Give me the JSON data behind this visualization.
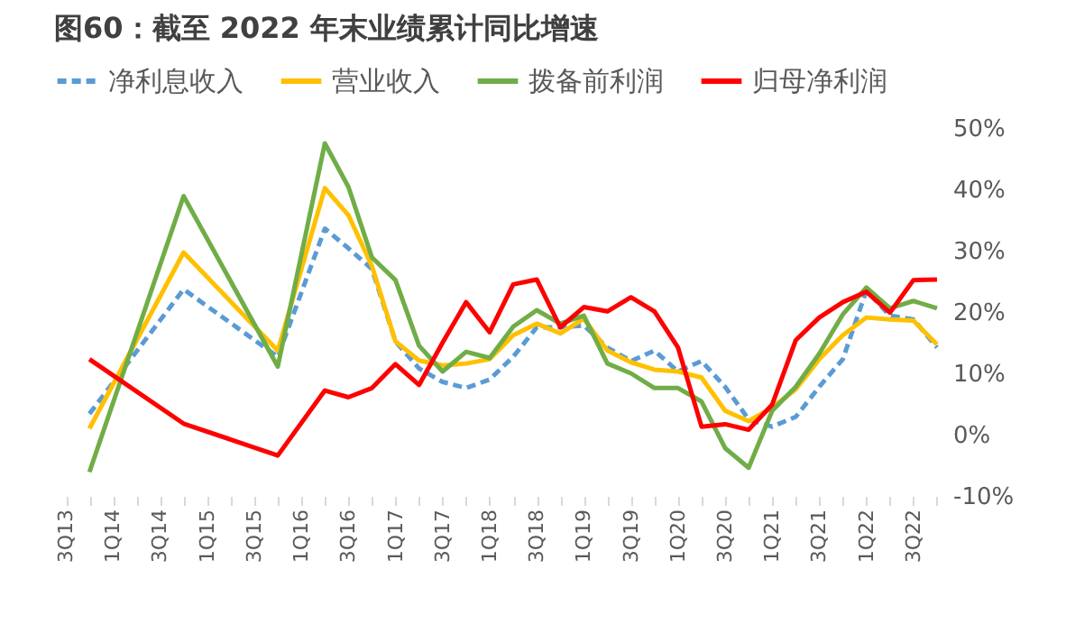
{
  "chart_data": {
    "type": "line",
    "title": "图60：截至 2022 年末业绩累计同比增速",
    "categories": [
      "3Q13",
      null,
      "1Q14",
      null,
      "3Q14",
      null,
      "1Q15",
      null,
      "3Q15",
      null,
      "1Q16",
      null,
      "3Q16",
      null,
      "1Q17",
      null,
      "3Q17",
      null,
      "1Q18",
      null,
      "3Q18",
      null,
      "1Q19",
      null,
      "3Q19",
      null,
      "1Q20",
      null,
      "3Q20",
      null,
      "1Q21",
      null,
      "3Q21",
      null,
      "1Q22",
      null,
      "3Q22",
      null
    ],
    "series": [
      {
        "name": "净利息收入",
        "color": "#5b9bd5",
        "line_style": "dashed",
        "values": [
          null,
          3.4,
          null,
          null,
          null,
          23.7,
          null,
          null,
          null,
          12.7,
          null,
          33.6,
          30.4,
          27.0,
          15.2,
          10.8,
          8.6,
          7.6,
          9.0,
          12.7,
          17.5,
          17.5,
          17.8,
          14.2,
          12.0,
          13.7,
          10.3,
          12.0,
          7.8,
          2.5,
          1.3,
          2.9,
          7.8,
          12.3,
          23.5,
          19.4,
          18.8,
          14.2
        ]
      },
      {
        "name": "营业收入",
        "color": "#ffc000",
        "line_style": "solid",
        "values": [
          null,
          1.0,
          null,
          null,
          null,
          29.7,
          null,
          null,
          null,
          13.7,
          null,
          40.2,
          35.8,
          27.5,
          15.2,
          12.1,
          11.3,
          11.6,
          12.3,
          16.2,
          18.1,
          16.5,
          18.9,
          13.7,
          11.8,
          10.6,
          10.3,
          9.3,
          3.9,
          2.2,
          4.4,
          7.4,
          12.3,
          16.2,
          19.1,
          18.8,
          18.6,
          14.7
        ]
      },
      {
        "name": "拨备前利润",
        "color": "#70ad47",
        "line_style": "solid",
        "values": [
          null,
          -6.1,
          null,
          null,
          null,
          38.9,
          null,
          null,
          null,
          11.1,
          null,
          47.5,
          40.4,
          28.9,
          25.2,
          14.5,
          10.3,
          13.5,
          12.5,
          17.6,
          20.3,
          18.1,
          19.4,
          11.6,
          10.0,
          7.6,
          7.6,
          5.4,
          -2.2,
          -5.4,
          3.9,
          7.8,
          13.2,
          19.6,
          24.0,
          20.6,
          21.8,
          20.6
        ]
      },
      {
        "name": "归母净利润",
        "color": "#ff0000",
        "line_style": "solid",
        "values": [
          null,
          12.3,
          null,
          null,
          null,
          1.8,
          null,
          null,
          null,
          -3.4,
          null,
          7.2,
          6.1,
          7.6,
          11.5,
          8.1,
          15.0,
          21.6,
          16.7,
          24.5,
          25.3,
          17.5,
          20.8,
          20.1,
          22.4,
          20.1,
          14.2,
          1.3,
          1.7,
          0.8,
          4.9,
          15.4,
          19.1,
          21.6,
          23.3,
          19.9,
          25.2,
          25.3
        ]
      }
    ],
    "ylim": [
      -10,
      50
    ],
    "yticks": [
      {
        "value": -10,
        "label": "-10%"
      },
      {
        "value": 0,
        "label": "0%"
      },
      {
        "value": 10,
        "label": "10%"
      },
      {
        "value": 20,
        "label": "20%"
      },
      {
        "value": 30,
        "label": "30%"
      },
      {
        "value": 40,
        "label": "40%"
      },
      {
        "value": 50,
        "label": "50%"
      }
    ],
    "grid": false,
    "legend": "top"
  }
}
